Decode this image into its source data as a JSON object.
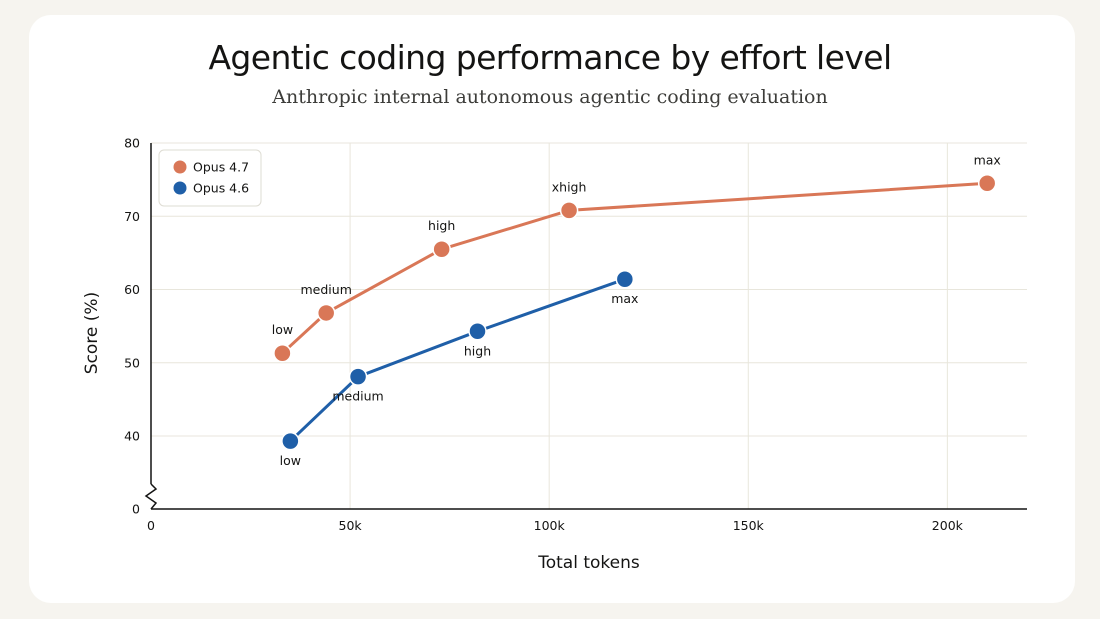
{
  "chart_data": {
    "type": "line",
    "title": "Agentic coding performance by effort level",
    "subtitle": "Anthropic internal autonomous agentic coding evaluation",
    "xlabel": "Total tokens",
    "ylabel": "Score (%)",
    "xlim": [
      0,
      220000
    ],
    "ylim": [
      0,
      80
    ],
    "y_axis_break": [
      0,
      35
    ],
    "xticks": [
      {
        "value": 0,
        "label": "0"
      },
      {
        "value": 50000,
        "label": "50k"
      },
      {
        "value": 100000,
        "label": "100k"
      },
      {
        "value": 150000,
        "label": "150k"
      },
      {
        "value": 200000,
        "label": "200k"
      }
    ],
    "yticks": [
      {
        "value": 0,
        "label": "0"
      },
      {
        "value": 40,
        "label": "40"
      },
      {
        "value": 50,
        "label": "50"
      },
      {
        "value": 60,
        "label": "60"
      },
      {
        "value": 70,
        "label": "70"
      },
      {
        "value": 80,
        "label": "80"
      }
    ],
    "grid": true,
    "legend_position": "top-left",
    "series": [
      {
        "name": "Opus 4.7",
        "color": "#d97757",
        "points": [
          {
            "x": 33000,
            "y": 51.3,
            "label": "low"
          },
          {
            "x": 44000,
            "y": 56.8,
            "label": "medium"
          },
          {
            "x": 73000,
            "y": 65.5,
            "label": "high"
          },
          {
            "x": 105000,
            "y": 70.8,
            "label": "xhigh"
          },
          {
            "x": 210000,
            "y": 74.5,
            "label": "max"
          }
        ]
      },
      {
        "name": "Opus 4.6",
        "color": "#1f5fa8",
        "points": [
          {
            "x": 35000,
            "y": 39.3,
            "label": "low"
          },
          {
            "x": 52000,
            "y": 48.1,
            "label": "medium"
          },
          {
            "x": 82000,
            "y": 54.3,
            "label": "high"
          },
          {
            "x": 119000,
            "y": 61.4,
            "label": "max"
          }
        ]
      }
    ]
  }
}
